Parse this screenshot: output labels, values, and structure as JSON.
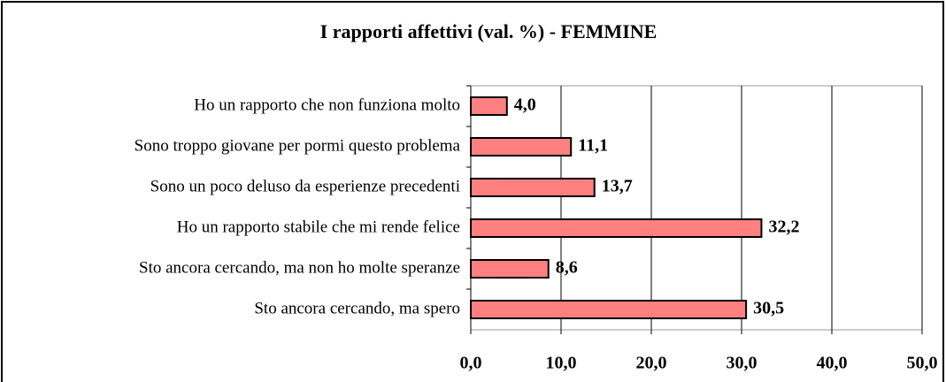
{
  "chart_data": {
    "type": "bar",
    "orientation": "horizontal",
    "title": "I rapporti affettivi (val. %) - FEMMINE",
    "categories": [
      "Ho un rapporto che non funziona molto",
      "Sono troppo giovane per pormi questo problema",
      "Sono un poco deluso da esperienze precedenti",
      "Ho un rapporto stabile che mi rende felice",
      "Sto ancora cercando, ma non ho molte speranze",
      "Sto ancora cercando, ma spero"
    ],
    "values": [
      4.0,
      11.1,
      13.7,
      32.2,
      8.6,
      30.5
    ],
    "value_labels": [
      "4,0",
      "11,1",
      "13,7",
      "32,2",
      "8,6",
      "30,5"
    ],
    "color": "#ff8080",
    "xlim": [
      0,
      50
    ],
    "xticks": [
      {
        "value": 0,
        "label": "0,0"
      },
      {
        "value": 10,
        "label": "10,0"
      },
      {
        "value": 20,
        "label": "20,0"
      },
      {
        "value": 30,
        "label": "30,0"
      },
      {
        "value": 40,
        "label": "40,0"
      },
      {
        "value": 50,
        "label": "50,0"
      }
    ],
    "grid": true
  }
}
